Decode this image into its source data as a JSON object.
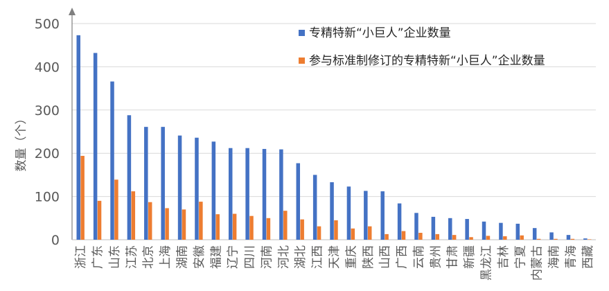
{
  "chart_data": {
    "type": "bar",
    "title": "",
    "xlabel": "",
    "ylabel": "数量（个）",
    "ylim": [
      0,
      500
    ],
    "yticks": [
      0,
      100,
      200,
      300,
      400,
      500
    ],
    "grid": true,
    "legend_position": "top-right",
    "categories": [
      "浙江",
      "广东",
      "山东",
      "江苏",
      "北京",
      "上海",
      "湖南",
      "安徽",
      "福建",
      "辽宁",
      "四川",
      "河南",
      "河北",
      "湖北",
      "江西",
      "天津",
      "重庆",
      "陕西",
      "山西",
      "广西",
      "云南",
      "贵州",
      "甘肃",
      "新疆",
      "黑龙江",
      "吉林",
      "宁夏",
      "内蒙古",
      "海南",
      "青海",
      "西藏"
    ],
    "series": [
      {
        "name": "专精特新“小巨人”企业数量",
        "color": "#4472C4",
        "values": [
          473,
          432,
          366,
          288,
          261,
          261,
          241,
          236,
          227,
          212,
          212,
          210,
          209,
          177,
          150,
          133,
          123,
          113,
          112,
          84,
          62,
          53,
          50,
          48,
          42,
          39,
          37,
          27,
          17,
          11,
          3
        ]
      },
      {
        "name": "参与标准制修订的专精特新“小巨人”企业数量",
        "color": "#ED7D31",
        "values": [
          194,
          90,
          139,
          112,
          87,
          73,
          70,
          88,
          59,
          60,
          55,
          50,
          67,
          47,
          31,
          45,
          26,
          31,
          13,
          20,
          16,
          13,
          11,
          6,
          9,
          8,
          10,
          2,
          2,
          2,
          1
        ]
      }
    ]
  }
}
